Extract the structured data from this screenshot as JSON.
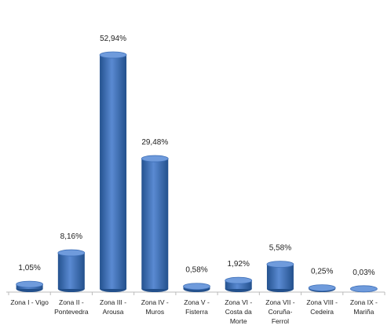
{
  "chart_data": {
    "type": "bar",
    "categories": [
      "Zona I - Vigo",
      "Zona II - Pontevedra",
      "Zona III - Arousa",
      "Zona IV - Muros",
      "Zona V - Fisterra",
      "Zona VI - Costa da Morte",
      "Zona VII - Coruña-Ferrol",
      "Zona VIII - Cedeira",
      "Zona IX - Mariña"
    ],
    "values": [
      1.05,
      8.16,
      52.94,
      29.48,
      0.58,
      1.92,
      5.58,
      0.25,
      0.03
    ],
    "value_labels": [
      "1,05%",
      "8,16%",
      "52,94%",
      "29,48%",
      "0,58%",
      "1,92%",
      "5,58%",
      "0,25%",
      "0,03%"
    ],
    "color": "#3f70b8"
  }
}
